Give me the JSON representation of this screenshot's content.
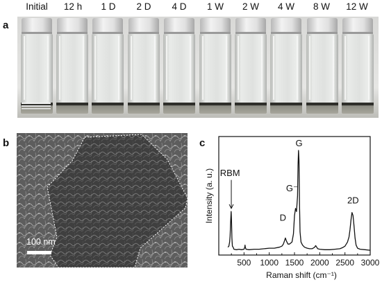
{
  "panel_a": {
    "letter": "a",
    "vial_labels": [
      "Initial",
      "12 h",
      "1 D",
      "2 D",
      "4 D",
      "1 W",
      "2 W",
      "4 W",
      "8 W",
      "12 W"
    ]
  },
  "panel_b": {
    "letter": "b",
    "scale_bar_label": "100 nm"
  },
  "panel_c": {
    "letter": "c",
    "annotations": [
      "RBM",
      "G⁻",
      "G",
      "D",
      "2D"
    ]
  },
  "chart_data": {
    "type": "line",
    "title": "",
    "xlabel": "Raman shift (cm⁻¹)",
    "ylabel": "Intensity (a. u.)",
    "xlim": [
      0,
      3000
    ],
    "x_ticks": [
      500,
      1000,
      1500,
      2000,
      2500,
      3000
    ],
    "x_tick_labels": [
      "500",
      "1000",
      "1500",
      "2000",
      "2500",
      "3000"
    ],
    "y_ticks_shown": false,
    "grid": false,
    "series": [
      {
        "x": [
          180,
          200,
          215,
          225,
          235,
          245,
          252,
          260,
          270,
          285,
          300,
          350,
          400,
          450,
          500,
          515,
          520,
          525,
          540,
          600,
          700,
          800,
          900,
          1000,
          1100,
          1200,
          1250,
          1280,
          1300,
          1320,
          1340,
          1370,
          1400,
          1450,
          1480,
          1500,
          1520,
          1540,
          1560,
          1570,
          1580,
          1590,
          1600,
          1610,
          1630,
          1660,
          1700,
          1750,
          1800,
          1850,
          1900,
          1920,
          1940,
          1960,
          2000,
          2100,
          2200,
          2300,
          2400,
          2450,
          2500,
          2550,
          2580,
          2600,
          2620,
          2640,
          2660,
          2680,
          2700,
          2720,
          2750,
          2800,
          2900,
          3000
        ],
        "y": [
          0.05,
          0.06,
          0.1,
          0.16,
          0.3,
          0.4,
          0.32,
          0.14,
          0.06,
          0.05,
          0.03,
          0.025,
          0.03,
          0.025,
          0.03,
          0.05,
          0.07,
          0.05,
          0.03,
          0.025,
          0.03,
          0.03,
          0.035,
          0.04,
          0.04,
          0.05,
          0.06,
          0.08,
          0.11,
          0.14,
          0.11,
          0.08,
          0.08,
          0.1,
          0.18,
          0.36,
          0.43,
          0.4,
          0.55,
          0.85,
          1.0,
          0.9,
          0.45,
          0.2,
          0.1,
          0.07,
          0.05,
          0.04,
          0.035,
          0.035,
          0.05,
          0.065,
          0.05,
          0.035,
          0.03,
          0.025,
          0.025,
          0.03,
          0.035,
          0.045,
          0.06,
          0.1,
          0.15,
          0.22,
          0.32,
          0.39,
          0.36,
          0.26,
          0.14,
          0.07,
          0.04,
          0.03,
          0.025,
          0.02
        ]
      }
    ]
  }
}
